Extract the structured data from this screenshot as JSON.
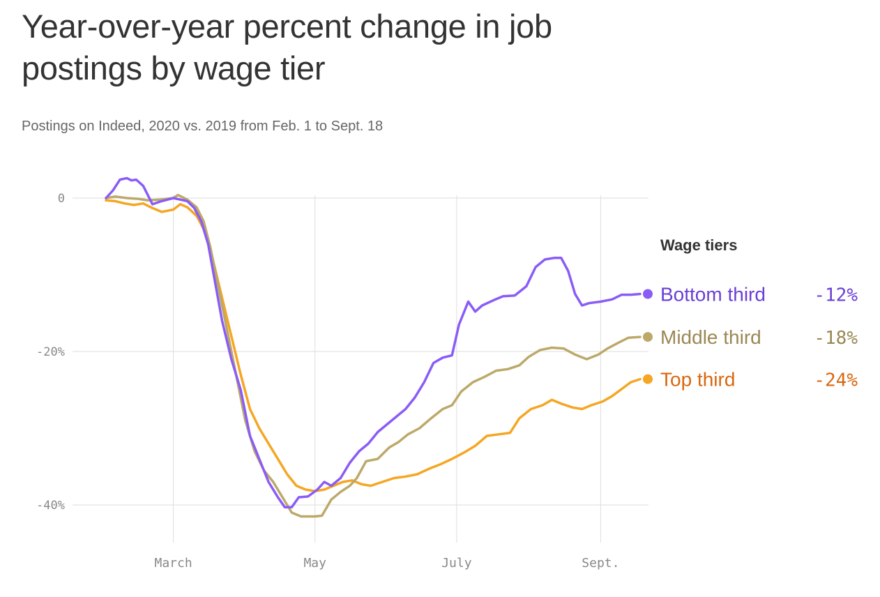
{
  "chart_data": {
    "type": "line",
    "title": "Year-over-year percent change in job postings by wage tier",
    "subtitle": "Postings on Indeed, 2020 vs. 2019 from Feb. 1 to Sept. 18",
    "xlabel": "",
    "ylabel": "",
    "x_range": [
      "2020-02-01",
      "2020-09-18"
    ],
    "ylim": [
      -46,
      4
    ],
    "y_ticks": [
      {
        "value": 0,
        "label": "0"
      },
      {
        "value": -20,
        "label": "-20%"
      },
      {
        "value": -40,
        "label": "-40%"
      }
    ],
    "x_ticks": [
      {
        "date": "2020-03-01",
        "label": "March"
      },
      {
        "date": "2020-05-01",
        "label": "May"
      },
      {
        "date": "2020-07-01",
        "label": "July"
      },
      {
        "date": "2020-09-01",
        "label": "Sept."
      }
    ],
    "grid": true,
    "legend_title": "Wage tiers",
    "legend_position": "right",
    "series": [
      {
        "name": "Bottom third",
        "final_label": "-12%",
        "color": "#8a5cf6",
        "label_color": "#6a3fd6",
        "points": [
          [
            "2020-02-01",
            0
          ],
          [
            "2020-02-04",
            1
          ],
          [
            "2020-02-07",
            2.4
          ],
          [
            "2020-02-10",
            2.6
          ],
          [
            "2020-02-12",
            2.3
          ],
          [
            "2020-02-14",
            2.4
          ],
          [
            "2020-02-17",
            1.6
          ],
          [
            "2020-02-21",
            -0.8
          ],
          [
            "2020-02-25",
            -0.4
          ],
          [
            "2020-03-01",
            0
          ],
          [
            "2020-03-04",
            -0.2
          ],
          [
            "2020-03-07",
            -0.4
          ],
          [
            "2020-03-10",
            -1.3
          ],
          [
            "2020-03-13",
            -3
          ],
          [
            "2020-03-16",
            -6
          ],
          [
            "2020-03-19",
            -11
          ],
          [
            "2020-03-22",
            -16
          ],
          [
            "2020-03-26",
            -21
          ],
          [
            "2020-03-30",
            -25
          ],
          [
            "2020-04-03",
            -31
          ],
          [
            "2020-04-07",
            -34
          ],
          [
            "2020-04-11",
            -37
          ],
          [
            "2020-04-15",
            -39
          ],
          [
            "2020-04-18",
            -40.3
          ],
          [
            "2020-04-21",
            -40.3
          ],
          [
            "2020-04-24",
            -39
          ],
          [
            "2020-04-28",
            -38.9
          ],
          [
            "2020-05-02",
            -38
          ],
          [
            "2020-05-05",
            -37
          ],
          [
            "2020-05-08",
            -37.5
          ],
          [
            "2020-05-12",
            -36.5
          ],
          [
            "2020-05-16",
            -34.5
          ],
          [
            "2020-05-20",
            -33
          ],
          [
            "2020-05-24",
            -32
          ],
          [
            "2020-05-28",
            -30.5
          ],
          [
            "2020-06-01",
            -29.5
          ],
          [
            "2020-06-05",
            -28.5
          ],
          [
            "2020-06-09",
            -27.5
          ],
          [
            "2020-06-13",
            -26
          ],
          [
            "2020-06-17",
            -24
          ],
          [
            "2020-06-21",
            -21.5
          ],
          [
            "2020-06-25",
            -20.8
          ],
          [
            "2020-06-29",
            -20.5
          ],
          [
            "2020-07-02",
            -16.5
          ],
          [
            "2020-07-06",
            -13.5
          ],
          [
            "2020-07-09",
            -14.8
          ],
          [
            "2020-07-12",
            -14
          ],
          [
            "2020-07-17",
            -13.3
          ],
          [
            "2020-07-21",
            -12.8
          ],
          [
            "2020-07-26",
            -12.7
          ],
          [
            "2020-07-31",
            -11.5
          ],
          [
            "2020-08-04",
            -9
          ],
          [
            "2020-08-08",
            -8
          ],
          [
            "2020-08-12",
            -7.8
          ],
          [
            "2020-08-15",
            -7.8
          ],
          [
            "2020-08-18",
            -9.5
          ],
          [
            "2020-08-21",
            -12.5
          ],
          [
            "2020-08-24",
            -14
          ],
          [
            "2020-08-27",
            -13.7
          ],
          [
            "2020-09-01",
            -13.5
          ],
          [
            "2020-09-06",
            -13.2
          ],
          [
            "2020-09-10",
            -12.6
          ],
          [
            "2020-09-14",
            -12.6
          ],
          [
            "2020-09-18",
            -12.5
          ]
        ]
      },
      {
        "name": "Middle third",
        "final_label": "-18%",
        "color": "#bca96a",
        "label_color": "#9a8753",
        "points": [
          [
            "2020-02-01",
            0
          ],
          [
            "2020-02-05",
            0.2
          ],
          [
            "2020-02-10",
            0
          ],
          [
            "2020-02-15",
            -0.1
          ],
          [
            "2020-02-19",
            -0.3
          ],
          [
            "2020-02-24",
            -0.2
          ],
          [
            "2020-03-01",
            0
          ],
          [
            "2020-03-03",
            0.4
          ],
          [
            "2020-03-07",
            -0.2
          ],
          [
            "2020-03-11",
            -1.2
          ],
          [
            "2020-03-14",
            -3
          ],
          [
            "2020-03-17",
            -6.5
          ],
          [
            "2020-03-20",
            -11
          ],
          [
            "2020-03-24",
            -17
          ],
          [
            "2020-03-28",
            -23
          ],
          [
            "2020-04-01",
            -29
          ],
          [
            "2020-04-05",
            -33
          ],
          [
            "2020-04-09",
            -35.5
          ],
          [
            "2020-04-13",
            -37
          ],
          [
            "2020-04-17",
            -39
          ],
          [
            "2020-04-21",
            -41
          ],
          [
            "2020-04-25",
            -41.5
          ],
          [
            "2020-05-01",
            -41.5
          ],
          [
            "2020-05-04",
            -41.4
          ],
          [
            "2020-05-08",
            -39.3
          ],
          [
            "2020-05-12",
            -38.3
          ],
          [
            "2020-05-16",
            -37.5
          ],
          [
            "2020-05-19",
            -36.5
          ],
          [
            "2020-05-23",
            -34.3
          ],
          [
            "2020-05-28",
            -34
          ],
          [
            "2020-06-02",
            -32.5
          ],
          [
            "2020-06-06",
            -31.8
          ],
          [
            "2020-06-10",
            -30.8
          ],
          [
            "2020-06-15",
            -30
          ],
          [
            "2020-06-20",
            -28.7
          ],
          [
            "2020-06-25",
            -27.5
          ],
          [
            "2020-06-29",
            -27
          ],
          [
            "2020-07-03",
            -25.2
          ],
          [
            "2020-07-08",
            -24
          ],
          [
            "2020-07-13",
            -23.3
          ],
          [
            "2020-07-18",
            -22.5
          ],
          [
            "2020-07-23",
            -22.3
          ],
          [
            "2020-07-28",
            -21.8
          ],
          [
            "2020-08-01",
            -20.7
          ],
          [
            "2020-08-06",
            -19.8
          ],
          [
            "2020-08-11",
            -19.5
          ],
          [
            "2020-08-16",
            -19.6
          ],
          [
            "2020-08-21",
            -20.4
          ],
          [
            "2020-08-26",
            -21
          ],
          [
            "2020-08-31",
            -20.4
          ],
          [
            "2020-09-04",
            -19.6
          ],
          [
            "2020-09-09",
            -18.8
          ],
          [
            "2020-09-13",
            -18.2
          ],
          [
            "2020-09-18",
            -18.1
          ]
        ]
      },
      {
        "name": "Top third",
        "final_label": "-24%",
        "color": "#f5a623",
        "label_color": "#d9670f",
        "points": [
          [
            "2020-02-01",
            -0.3
          ],
          [
            "2020-02-05",
            -0.4
          ],
          [
            "2020-02-09",
            -0.7
          ],
          [
            "2020-02-13",
            -0.9
          ],
          [
            "2020-02-17",
            -0.7
          ],
          [
            "2020-02-21",
            -1.3
          ],
          [
            "2020-02-25",
            -1.8
          ],
          [
            "2020-03-01",
            -1.5
          ],
          [
            "2020-03-04",
            -0.8
          ],
          [
            "2020-03-07",
            -1.2
          ],
          [
            "2020-03-11",
            -2.3
          ],
          [
            "2020-03-14",
            -4
          ],
          [
            "2020-03-18",
            -8
          ],
          [
            "2020-03-22",
            -13
          ],
          [
            "2020-03-26",
            -18
          ],
          [
            "2020-03-30",
            -23
          ],
          [
            "2020-04-03",
            -27.5
          ],
          [
            "2020-04-07",
            -30
          ],
          [
            "2020-04-11",
            -32
          ],
          [
            "2020-04-15",
            -34
          ],
          [
            "2020-04-19",
            -36
          ],
          [
            "2020-04-23",
            -37.5
          ],
          [
            "2020-04-27",
            -38
          ],
          [
            "2020-05-01",
            -38.2
          ],
          [
            "2020-05-05",
            -38
          ],
          [
            "2020-05-09",
            -37.5
          ],
          [
            "2020-05-13",
            -37
          ],
          [
            "2020-05-17",
            -36.8
          ],
          [
            "2020-05-21",
            -37.3
          ],
          [
            "2020-05-25",
            -37.5
          ],
          [
            "2020-05-30",
            -37
          ],
          [
            "2020-06-04",
            -36.5
          ],
          [
            "2020-06-09",
            -36.3
          ],
          [
            "2020-06-14",
            -36
          ],
          [
            "2020-06-19",
            -35.3
          ],
          [
            "2020-06-24",
            -34.7
          ],
          [
            "2020-06-29",
            -34
          ],
          [
            "2020-07-04",
            -33.2
          ],
          [
            "2020-07-09",
            -32.3
          ],
          [
            "2020-07-14",
            -31
          ],
          [
            "2020-07-19",
            -30.8
          ],
          [
            "2020-07-24",
            -30.6
          ],
          [
            "2020-07-28",
            -28.7
          ],
          [
            "2020-08-02",
            -27.5
          ],
          [
            "2020-08-07",
            -27
          ],
          [
            "2020-08-11",
            -26.3
          ],
          [
            "2020-08-15",
            -26.8
          ],
          [
            "2020-08-20",
            -27.3
          ],
          [
            "2020-08-24",
            -27.5
          ],
          [
            "2020-08-28",
            -27
          ],
          [
            "2020-09-02",
            -26.5
          ],
          [
            "2020-09-06",
            -25.8
          ],
          [
            "2020-09-10",
            -24.9
          ],
          [
            "2020-09-14",
            -24
          ],
          [
            "2020-09-18",
            -23.6
          ]
        ]
      }
    ]
  }
}
